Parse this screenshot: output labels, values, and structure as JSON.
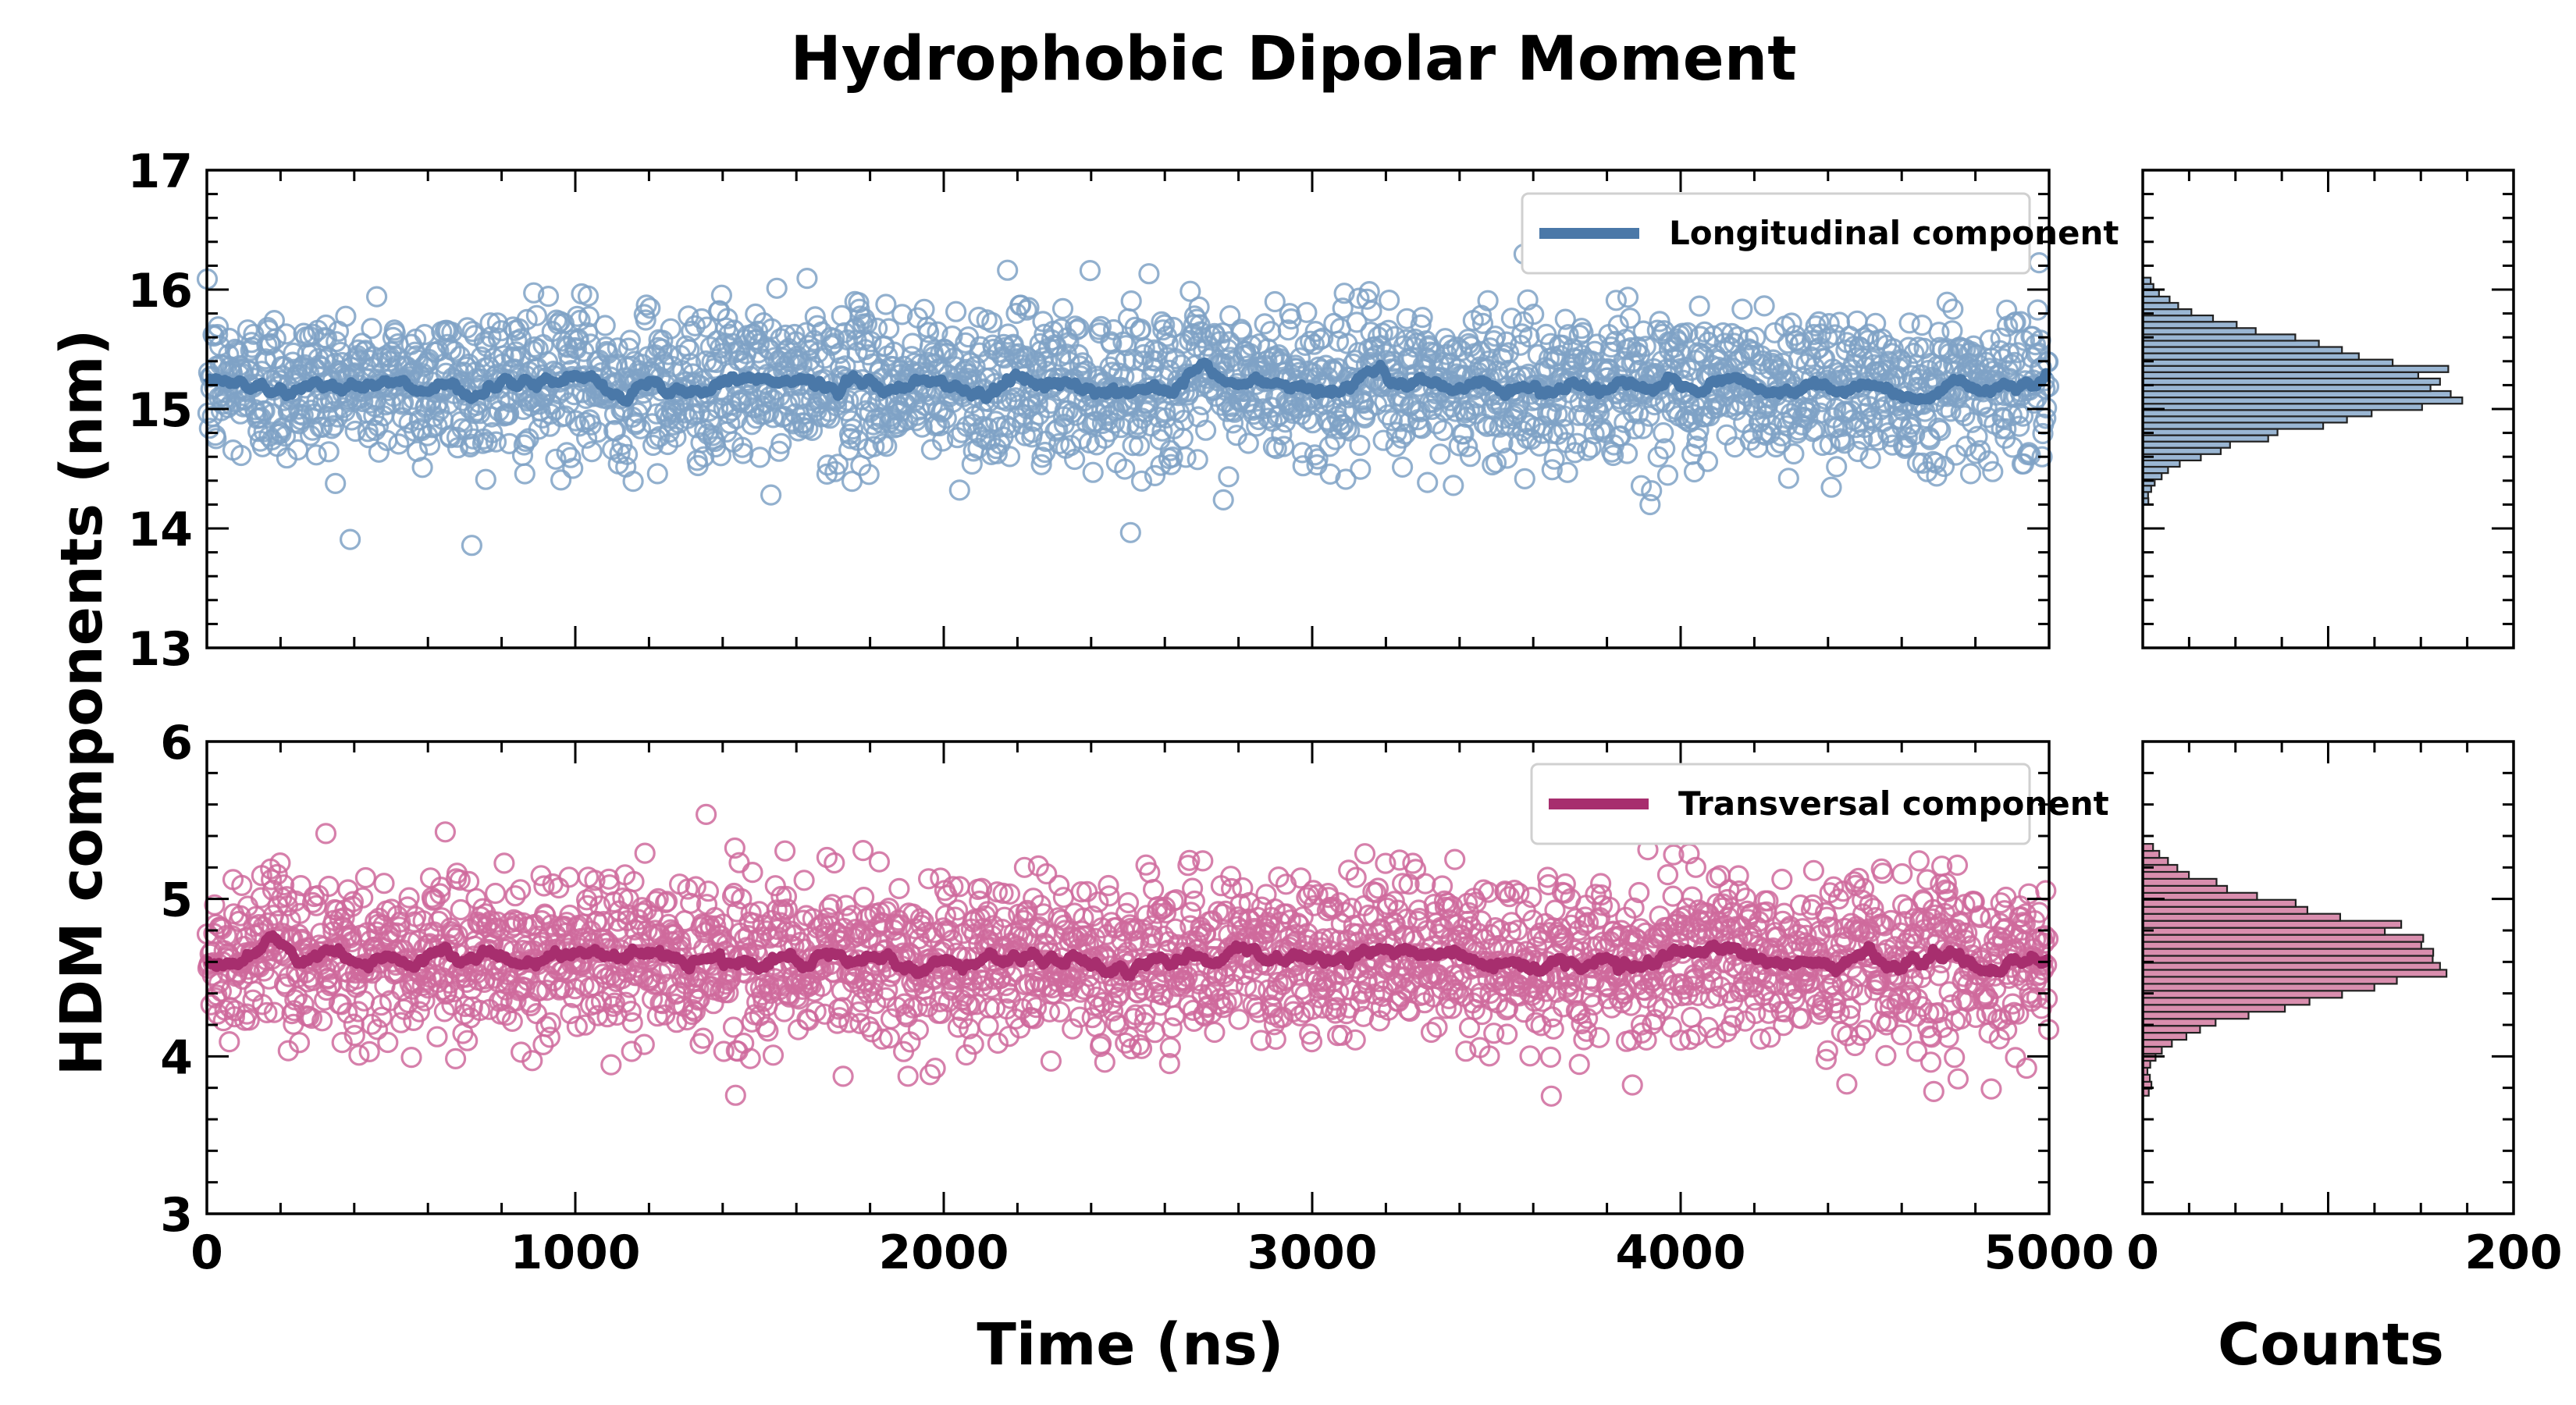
{
  "figure": {
    "title": "Hydrophobic Dipolar Moment",
    "ylabel": "HDM components (nm)",
    "xlabel": "Time (ns)",
    "hist_xlabel": "Counts"
  },
  "colors": {
    "longitudinal": "#4a78a8",
    "longitudinal_marker": "#7fa2c6",
    "transversal": "#a72e6e",
    "transversal_marker": "#cf6a9c",
    "hist_long_fill": "#9ab6d3",
    "hist_trans_fill": "#d98eae"
  },
  "chart_data": [
    {
      "type": "scatter",
      "panel": "top",
      "series_name": "Longitudinal component",
      "xlim": [
        0,
        5000
      ],
      "ylim": [
        13,
        17
      ],
      "xticks": [
        0,
        1000,
        2000,
        3000,
        4000,
        5000
      ],
      "yticks": [
        13,
        14,
        15,
        16,
        17
      ],
      "mean": 15.2,
      "std": 0.32,
      "n_points": 2500,
      "running_mean_line": true,
      "legend_position": "upper-right",
      "grid": false
    },
    {
      "type": "scatter",
      "panel": "bottom",
      "series_name": "Transversal component",
      "xlim": [
        0,
        5000
      ],
      "ylim": [
        3,
        6
      ],
      "xticks": [
        0,
        1000,
        2000,
        3000,
        4000,
        5000
      ],
      "yticks": [
        3,
        4,
        5,
        6
      ],
      "mean": 4.62,
      "std": 0.26,
      "n_points": 2500,
      "running_mean_line": true,
      "legend_position": "upper-right",
      "grid": false
    },
    {
      "type": "bar",
      "orientation": "horizontal",
      "panel": "top-histogram",
      "xlim": [
        0,
        200
      ],
      "xticks": [
        0,
        200
      ],
      "ylim": [
        13,
        17
      ],
      "bin_range": [
        14.2,
        16.1
      ],
      "bin_count": 36,
      "peak_count": 170,
      "peak_at": 15.2
    },
    {
      "type": "bar",
      "orientation": "horizontal",
      "panel": "bottom-histogram",
      "xlim": [
        0,
        200
      ],
      "xticks": [
        0,
        200
      ],
      "ylim": [
        3,
        6
      ],
      "bin_range": [
        3.75,
        5.35
      ],
      "bin_count": 36,
      "peak_count": 168,
      "peak_at": 4.65
    }
  ]
}
